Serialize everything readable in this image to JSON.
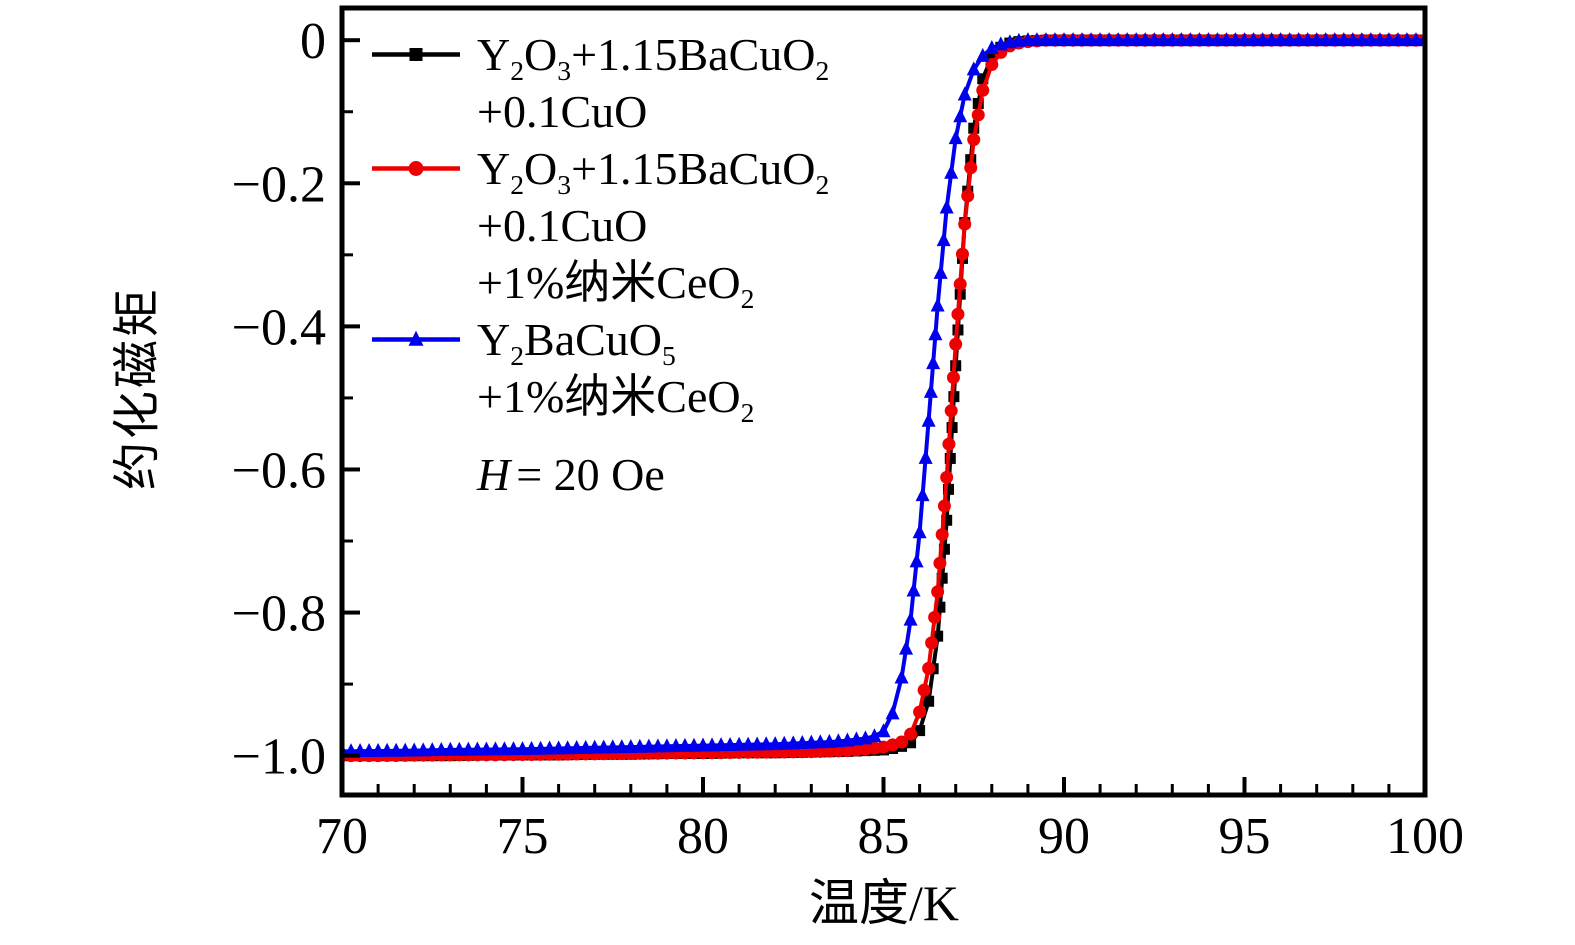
{
  "figure": {
    "background": "#ffffff",
    "frame_color": "#000000"
  },
  "axes": {
    "x_label": "温度/K",
    "y_label": "约化磁矩"
  },
  "annotation": {
    "text_plain": "H = 20 Oe",
    "segments": [
      {
        "i": "H"
      },
      {
        "t": "= 20 Oe"
      }
    ]
  },
  "legend": {
    "entries": [
      {
        "series": "Y2O3+1.15BaCuO2+0.1CuO",
        "marker": "square",
        "color": "#000000",
        "lines_plain": [
          "Y2O3+1.15BaCuO2",
          "+0.1CuO"
        ],
        "lines": [
          [
            {
              "t": "Y"
            },
            {
              "s": "2"
            },
            {
              "t": "O"
            },
            {
              "s": "3"
            },
            {
              "t": "+1.15BaCuO"
            },
            {
              "s": "2"
            }
          ],
          [
            {
              "t": "+0.1CuO"
            }
          ]
        ]
      },
      {
        "series": "Y2O3+1.15BaCuO2+0.1CuO+1%纳米CeO2",
        "marker": "circle",
        "color": "#ee0000",
        "lines_plain": [
          "Y2O3+1.15BaCuO2",
          "+0.1CuO",
          "+1%纳米CeO2"
        ],
        "lines": [
          [
            {
              "t": "Y"
            },
            {
              "s": "2"
            },
            {
              "t": "O"
            },
            {
              "s": "3"
            },
            {
              "t": "+1.15BaCuO"
            },
            {
              "s": "2"
            }
          ],
          [
            {
              "t": "+0.1CuO"
            }
          ],
          [
            {
              "t": "+1%纳米CeO"
            },
            {
              "s": "2"
            }
          ]
        ]
      },
      {
        "series": "Y2BaCuO5+1%纳米CeO2",
        "marker": "triangle",
        "color": "#0000ee",
        "lines_plain": [
          "Y2BaCuO5",
          "+1%纳米CeO2"
        ],
        "lines": [
          [
            {
              "t": "Y"
            },
            {
              "s": "2"
            },
            {
              "t": "BaCuO"
            },
            {
              "s": "5"
            }
          ],
          [
            {
              "t": "+1%纳米CeO"
            },
            {
              "s": "2"
            }
          ]
        ]
      }
    ]
  },
  "chart_data": {
    "type": "line",
    "title": "",
    "xlabel": "温度/K",
    "ylabel": "约化磁矩",
    "xlim": [
      70,
      100
    ],
    "ylim": [
      -1.055,
      0.045
    ],
    "grid": false,
    "legend_position": "upper-left-inside",
    "annotation": "H = 20 Oe",
    "x_axis": {
      "ticks": [
        70,
        75,
        80,
        85,
        90,
        95,
        100
      ],
      "tick_labels": [
        "70",
        "75",
        "80",
        "85",
        "90",
        "95",
        "100"
      ],
      "minor_step": 1
    },
    "y_axis": {
      "ticks": [
        0,
        -0.2,
        -0.4,
        -0.6,
        -0.8,
        -1.0
      ],
      "tick_labels": [
        "0",
        "−0.2",
        "−0.4",
        "−0.6",
        "−0.8",
        "−1.0"
      ],
      "minor_step": 0.1
    },
    "series": [
      {
        "name": "Y2O3+1.15BaCuO2+0.1CuO",
        "color": "#000000",
        "marker": "square",
        "points": [
          [
            70,
            -1.0
          ],
          [
            71,
            -1.0
          ],
          [
            72,
            -1.0
          ],
          [
            73,
            -1.0
          ],
          [
            74,
            -0.999
          ],
          [
            75,
            -0.999
          ],
          [
            76,
            -0.999
          ],
          [
            77,
            -0.998
          ],
          [
            78,
            -0.998
          ],
          [
            79,
            -0.997
          ],
          [
            80,
            -0.997
          ],
          [
            81,
            -0.996
          ],
          [
            82,
            -0.996
          ],
          [
            83,
            -0.995
          ],
          [
            84,
            -0.994
          ],
          [
            84.5,
            -0.993
          ],
          [
            85,
            -0.992
          ],
          [
            85.25,
            -0.99
          ],
          [
            85.5,
            -0.987
          ],
          [
            85.75,
            -0.982
          ],
          [
            86,
            -0.965
          ],
          [
            86.25,
            -0.924
          ],
          [
            86.5,
            -0.833
          ],
          [
            86.75,
            -0.671
          ],
          [
            87,
            -0.455
          ],
          [
            87.25,
            -0.255
          ],
          [
            87.5,
            -0.123
          ],
          [
            87.75,
            -0.054
          ],
          [
            88,
            -0.023
          ],
          [
            88.25,
            -0.01
          ],
          [
            88.5,
            -0.004
          ],
          [
            88.75,
            -0.002
          ],
          [
            89,
            -0.001
          ],
          [
            89.5,
            0
          ],
          [
            90,
            0
          ],
          [
            91,
            0
          ],
          [
            92,
            0
          ],
          [
            93,
            0
          ],
          [
            94,
            0
          ],
          [
            95,
            0
          ],
          [
            96,
            0
          ],
          [
            97,
            0
          ],
          [
            98,
            0
          ],
          [
            99,
            0
          ],
          [
            100,
            0
          ]
        ]
      },
      {
        "name": "Y2O3+1.15BaCuO2+0.1CuO+1%纳米CeO2",
        "color": "#ee0000",
        "marker": "circle",
        "points": [
          [
            70,
            -1.0
          ],
          [
            71,
            -1.0
          ],
          [
            72,
            -0.9995
          ],
          [
            73,
            -0.999
          ],
          [
            74,
            -0.999
          ],
          [
            75,
            -0.9985
          ],
          [
            76,
            -0.998
          ],
          [
            77,
            -0.9975
          ],
          [
            78,
            -0.997
          ],
          [
            79,
            -0.9965
          ],
          [
            80,
            -0.996
          ],
          [
            81,
            -0.9955
          ],
          [
            82,
            -0.995
          ],
          [
            83,
            -0.9945
          ],
          [
            84,
            -0.993
          ],
          [
            84.5,
            -0.991
          ],
          [
            85,
            -0.988
          ],
          [
            85.25,
            -0.985
          ],
          [
            85.5,
            -0.981
          ],
          [
            85.75,
            -0.97
          ],
          [
            86,
            -0.939
          ],
          [
            86.25,
            -0.878
          ],
          [
            86.5,
            -0.771
          ],
          [
            86.75,
            -0.611
          ],
          [
            87,
            -0.425
          ],
          [
            87.25,
            -0.257
          ],
          [
            87.5,
            -0.139
          ],
          [
            87.75,
            -0.07
          ],
          [
            88,
            -0.034
          ],
          [
            88.25,
            -0.017
          ],
          [
            88.5,
            -0.008
          ],
          [
            88.75,
            -0.004
          ],
          [
            89,
            -0.002
          ],
          [
            89.5,
            0
          ],
          [
            90,
            0
          ],
          [
            91,
            0
          ],
          [
            92,
            0
          ],
          [
            93,
            0
          ],
          [
            94,
            0
          ],
          [
            95,
            0
          ],
          [
            96,
            0
          ],
          [
            97,
            0
          ],
          [
            98,
            0
          ],
          [
            99,
            0
          ],
          [
            100,
            0
          ]
        ]
      },
      {
        "name": "Y2BaCuO5+1%纳米CeO2",
        "color": "#0000ee",
        "marker": "triangle",
        "points": [
          [
            70,
            -0.994
          ],
          [
            71,
            -0.9935
          ],
          [
            72,
            -0.993
          ],
          [
            73,
            -0.992
          ],
          [
            74,
            -0.9915
          ],
          [
            75,
            -0.991
          ],
          [
            76,
            -0.99
          ],
          [
            77,
            -0.989
          ],
          [
            78,
            -0.988
          ],
          [
            79,
            -0.987
          ],
          [
            80,
            -0.986
          ],
          [
            81,
            -0.985
          ],
          [
            82,
            -0.984
          ],
          [
            83,
            -0.982
          ],
          [
            83.5,
            -0.981
          ],
          [
            84,
            -0.979
          ],
          [
            84.5,
            -0.976
          ],
          [
            84.75,
            -0.973
          ],
          [
            85,
            -0.966
          ],
          [
            85.25,
            -0.941
          ],
          [
            85.5,
            -0.891
          ],
          [
            85.75,
            -0.81
          ],
          [
            86,
            -0.688
          ],
          [
            86.25,
            -0.532
          ],
          [
            86.5,
            -0.371
          ],
          [
            86.75,
            -0.234
          ],
          [
            87,
            -0.137
          ],
          [
            87.25,
            -0.076
          ],
          [
            87.5,
            -0.041
          ],
          [
            87.75,
            -0.022
          ],
          [
            88,
            -0.011
          ],
          [
            88.25,
            -0.006
          ],
          [
            88.5,
            -0.003
          ],
          [
            88.75,
            -0.001
          ],
          [
            89,
            0
          ],
          [
            89.5,
            0
          ],
          [
            90,
            0
          ],
          [
            91,
            0
          ],
          [
            92,
            0
          ],
          [
            93,
            0
          ],
          [
            94,
            0
          ],
          [
            95,
            0
          ],
          [
            96,
            0
          ],
          [
            97,
            0
          ],
          [
            98,
            0
          ],
          [
            99,
            0
          ],
          [
            100,
            0
          ]
        ]
      }
    ]
  }
}
